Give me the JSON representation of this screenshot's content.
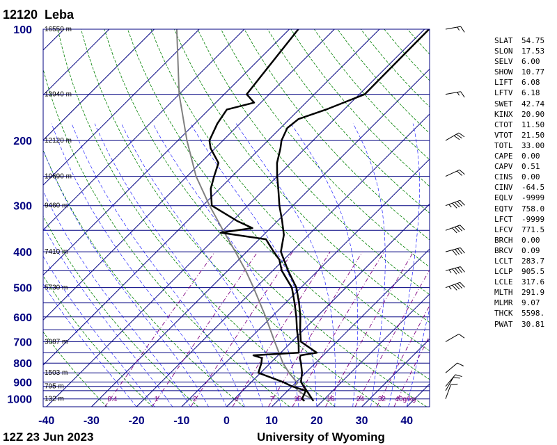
{
  "header": {
    "station_id": "12120",
    "station_name": "Leba"
  },
  "footer": {
    "time": "12Z 23 Jun 2023",
    "source": "University of Wyoming"
  },
  "indices": [
    {
      "key": "SLAT",
      "value": "54.75"
    },
    {
      "key": "SLON",
      "value": "17.53"
    },
    {
      "key": "SELV",
      "value": "6.00"
    },
    {
      "key": "SHOW",
      "value": "10.77"
    },
    {
      "key": "LIFT",
      "value": "6.08"
    },
    {
      "key": "LFTV",
      "value": "6.18"
    },
    {
      "key": "SWET",
      "value": "42.74"
    },
    {
      "key": "KINX",
      "value": "20.90"
    },
    {
      "key": "CTOT",
      "value": "11.50"
    },
    {
      "key": "VTOT",
      "value": "21.50"
    },
    {
      "key": "TOTL",
      "value": "33.00"
    },
    {
      "key": "CAPE",
      "value": "0.00"
    },
    {
      "key": "CAPV",
      "value": "0.51"
    },
    {
      "key": "CINS",
      "value": "0.00"
    },
    {
      "key": "CINV",
      "value": "-64.5"
    },
    {
      "key": "EQLV",
      "value": "-9999"
    },
    {
      "key": "EQTV",
      "value": "758.0"
    },
    {
      "key": "LFCT",
      "value": "-9999"
    },
    {
      "key": "LFCV",
      "value": "771.5"
    },
    {
      "key": "BRCH",
      "value": "0.00"
    },
    {
      "key": "BRCV",
      "value": "0.09"
    },
    {
      "key": "LCLT",
      "value": "283.7"
    },
    {
      "key": "LCLP",
      "value": "905.5"
    },
    {
      "key": "LCLE",
      "value": "317.6"
    },
    {
      "key": "MLTH",
      "value": "291.9"
    },
    {
      "key": "MLMR",
      "value": "9.07"
    },
    {
      "key": "THCK",
      "value": "5598."
    },
    {
      "key": "PWAT",
      "value": "30.81"
    }
  ],
  "colors": {
    "isobar": "#000080",
    "isotherm": "#000080",
    "dry_adiabat": "#008000",
    "moist_adiabat": "#0000ff",
    "mixing_ratio": "#800080",
    "temperature": "#000000",
    "dewpoint": "#000000",
    "parcel": "#808080"
  },
  "chart_data": {
    "type": "skew-t log-p",
    "x_axis": {
      "ticks": [
        -40,
        -30,
        -20,
        -10,
        0,
        10,
        20,
        30,
        40
      ],
      "range_at_bottom": [
        -40,
        45
      ]
    },
    "y_axis": {
      "scale": "log",
      "ticks": [
        1000,
        900,
        800,
        700,
        600,
        500,
        400,
        300,
        200,
        100
      ],
      "range": [
        1050,
        100
      ]
    },
    "height_labels": [
      {
        "p": 100,
        "text": "16550 m"
      },
      {
        "p": 150,
        "text": "13940 m"
      },
      {
        "p": 200,
        "text": "12120 m"
      },
      {
        "p": 250,
        "text": "10690 m"
      },
      {
        "p": 300,
        "text": "9460 m"
      },
      {
        "p": 400,
        "text": "7410 m"
      },
      {
        "p": 500,
        "text": "5730 m"
      },
      {
        "p": 700,
        "text": "3087 m"
      },
      {
        "p": 850,
        "text": "1503 m"
      },
      {
        "p": 925,
        "text": "795 m"
      },
      {
        "p": 1000,
        "text": "132 m"
      }
    ],
    "mixing_ratio_labels": [
      "0.4",
      "1",
      "2",
      "4",
      "7",
      "10",
      "16",
      "24",
      "32",
      "40g/kg"
    ],
    "mixing_ratio_values": [
      0.4,
      1,
      2,
      4,
      7,
      10,
      16,
      24,
      32,
      40
    ],
    "temperature": [
      [
        1013,
        18.0
      ],
      [
        1000,
        17.2
      ],
      [
        950,
        14.2
      ],
      [
        925,
        12.6
      ],
      [
        900,
        11.0
      ],
      [
        850,
        9.2
      ],
      [
        800,
        6.8
      ],
      [
        775,
        5.4
      ],
      [
        762,
        5.0
      ],
      [
        750,
        8.0
      ],
      [
        700,
        2.0
      ],
      [
        650,
        -0.8
      ],
      [
        600,
        -3.6
      ],
      [
        550,
        -7.0
      ],
      [
        500,
        -11.0
      ],
      [
        450,
        -16.6
      ],
      [
        420,
        -20.0
      ],
      [
        400,
        -22.4
      ],
      [
        360,
        -25.5
      ],
      [
        330,
        -29.0
      ],
      [
        300,
        -33.0
      ],
      [
        270,
        -37.0
      ],
      [
        250,
        -40.0
      ],
      [
        230,
        -43.0
      ],
      [
        210,
        -45.5
      ],
      [
        200,
        -47.0
      ],
      [
        185,
        -48.5
      ],
      [
        175,
        -48.0
      ],
      [
        165,
        -44.0
      ],
      [
        150,
        -38.8
      ],
      [
        100,
        -39.0
      ]
    ],
    "dewpoint": [
      [
        1013,
        16.0
      ],
      [
        1000,
        15.0
      ],
      [
        950,
        14.0
      ],
      [
        925,
        10.0
      ],
      [
        900,
        7.0
      ],
      [
        850,
        -0.5
      ],
      [
        800,
        -2.0
      ],
      [
        775,
        -3.0
      ],
      [
        762,
        -5.5
      ],
      [
        750,
        4.0
      ],
      [
        700,
        1.5
      ],
      [
        650,
        -1.5
      ],
      [
        600,
        -4.5
      ],
      [
        550,
        -8.0
      ],
      [
        500,
        -12.0
      ],
      [
        450,
        -18.0
      ],
      [
        420,
        -21.0
      ],
      [
        400,
        -24.0
      ],
      [
        370,
        -28.5
      ],
      [
        355,
        -40.0
      ],
      [
        345,
        -34.0
      ],
      [
        330,
        -39.0
      ],
      [
        300,
        -48.0
      ],
      [
        270,
        -52.0
      ],
      [
        250,
        -54.0
      ],
      [
        230,
        -56.0
      ],
      [
        210,
        -61.0
      ],
      [
        200,
        -63.0
      ],
      [
        180,
        -65.0
      ],
      [
        165,
        -66.0
      ],
      [
        158,
        -61.5
      ],
      [
        150,
        -65.0
      ],
      [
        100,
        -68.0
      ]
    ],
    "parcel": [
      [
        1000,
        17.2
      ],
      [
        975,
        14.6
      ],
      [
        950,
        12.3
      ],
      [
        925,
        10.5
      ],
      [
        905,
        10.4
      ],
      [
        850,
        6.3
      ],
      [
        800,
        2.8
      ],
      [
        700,
        -3.8
      ],
      [
        600,
        -11.3
      ],
      [
        500,
        -20.5
      ],
      [
        450,
        -26.0
      ],
      [
        400,
        -32.5
      ],
      [
        350,
        -40.0
      ],
      [
        300,
        -48.5
      ],
      [
        250,
        -58.0
      ],
      [
        200,
        -68.0
      ],
      [
        150,
        -80.0
      ],
      [
        100,
        -95.0
      ]
    ],
    "wind_barbs": [
      {
        "p": 1000,
        "dir": 200,
        "kt": 10
      },
      {
        "p": 950,
        "dir": 210,
        "kt": 10
      },
      {
        "p": 925,
        "dir": 220,
        "kt": 10
      },
      {
        "p": 850,
        "dir": 230,
        "kt": 10
      },
      {
        "p": 700,
        "dir": 240,
        "kt": 10
      },
      {
        "p": 500,
        "dir": 250,
        "kt": 45
      },
      {
        "p": 450,
        "dir": 255,
        "kt": 45
      },
      {
        "p": 400,
        "dir": 255,
        "kt": 40
      },
      {
        "p": 350,
        "dir": 250,
        "kt": 40
      },
      {
        "p": 300,
        "dir": 250,
        "kt": 45
      },
      {
        "p": 250,
        "dir": 245,
        "kt": 20
      },
      {
        "p": 200,
        "dir": 240,
        "kt": 30
      },
      {
        "p": 150,
        "dir": 260,
        "kt": 15
      },
      {
        "p": 100,
        "dir": 260,
        "kt": 15
      }
    ]
  }
}
